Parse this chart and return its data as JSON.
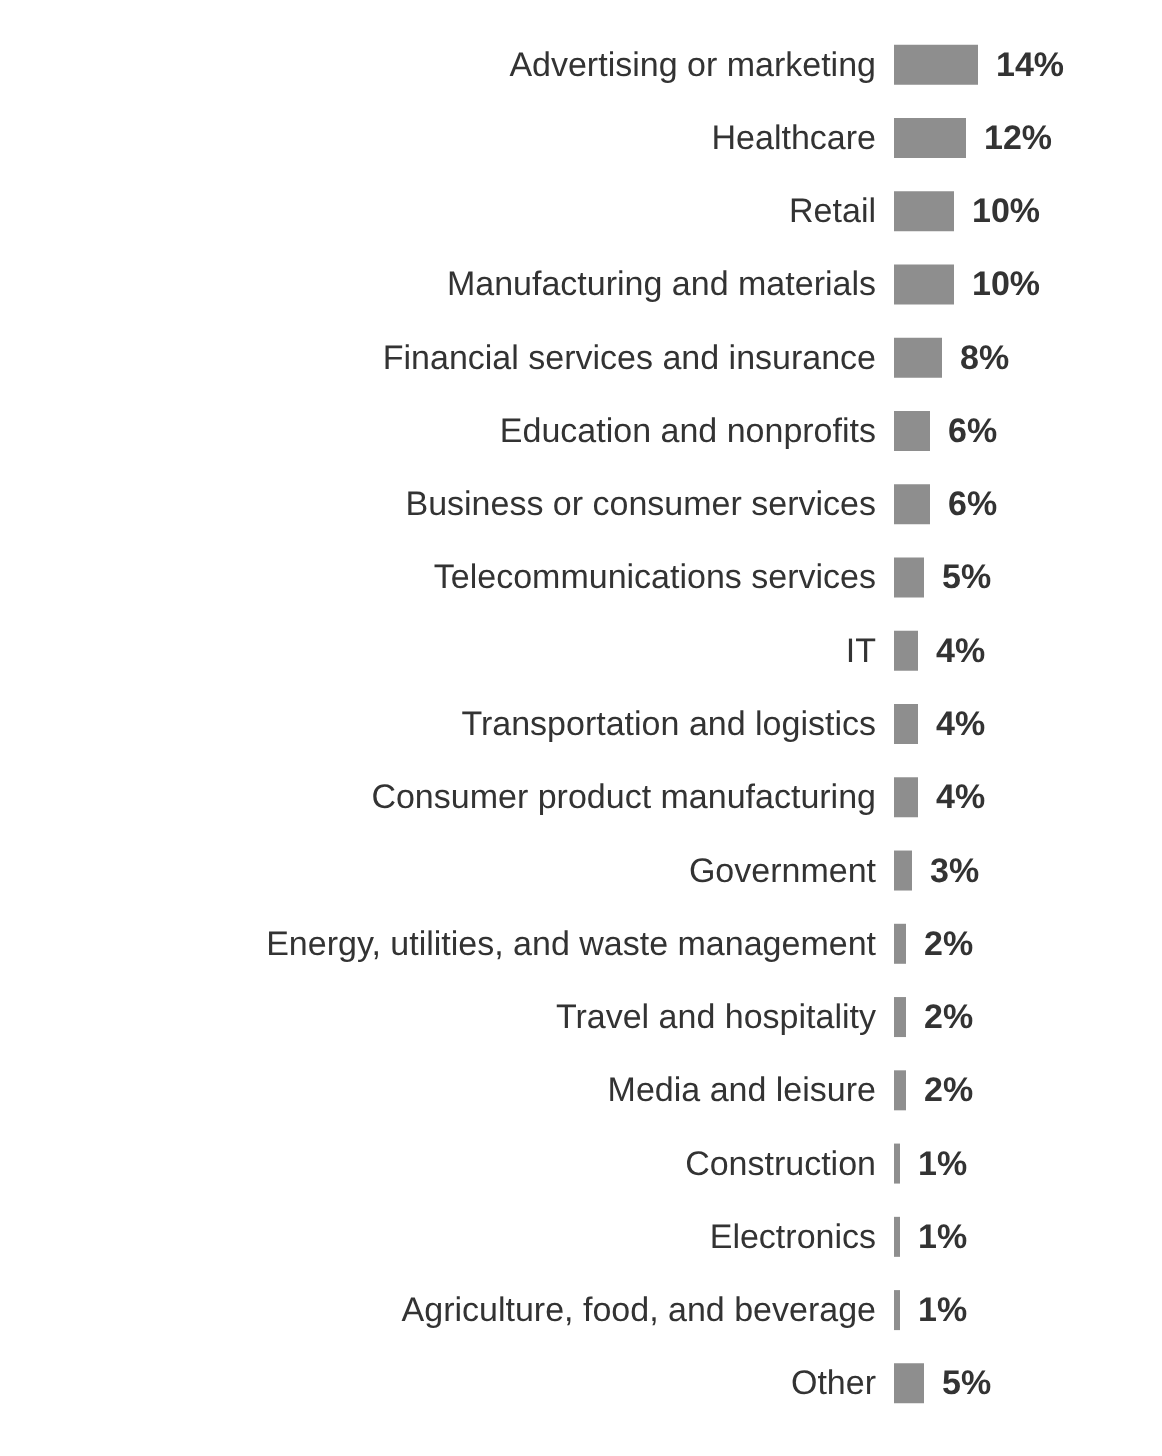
{
  "chart_data": {
    "type": "bar",
    "orientation": "horizontal",
    "categories": [
      "Advertising or marketing",
      "Healthcare",
      "Retail",
      "Manufacturing and materials",
      "Financial services and insurance",
      "Education and nonprofits",
      "Business or consumer services",
      "Telecommunications services",
      "IT",
      "Transportation and logistics",
      "Consumer product manufacturing",
      "Government",
      "Energy, utilities, and waste management",
      "Travel and hospitality",
      "Media and leisure",
      "Construction",
      "Electronics",
      "Agriculture, food, and beverage",
      "Other"
    ],
    "values": [
      14,
      12,
      10,
      10,
      8,
      6,
      6,
      5,
      4,
      4,
      4,
      3,
      2,
      2,
      2,
      1,
      1,
      1,
      5
    ],
    "value_labels": [
      "14%",
      "12%",
      "10%",
      "10%",
      "8%",
      "6%",
      "6%",
      "5%",
      "4%",
      "4%",
      "4%",
      "3%",
      "2%",
      "2%",
      "2%",
      "1%",
      "1%",
      "1%",
      "5%"
    ],
    "color": "#8e8e8e"
  }
}
